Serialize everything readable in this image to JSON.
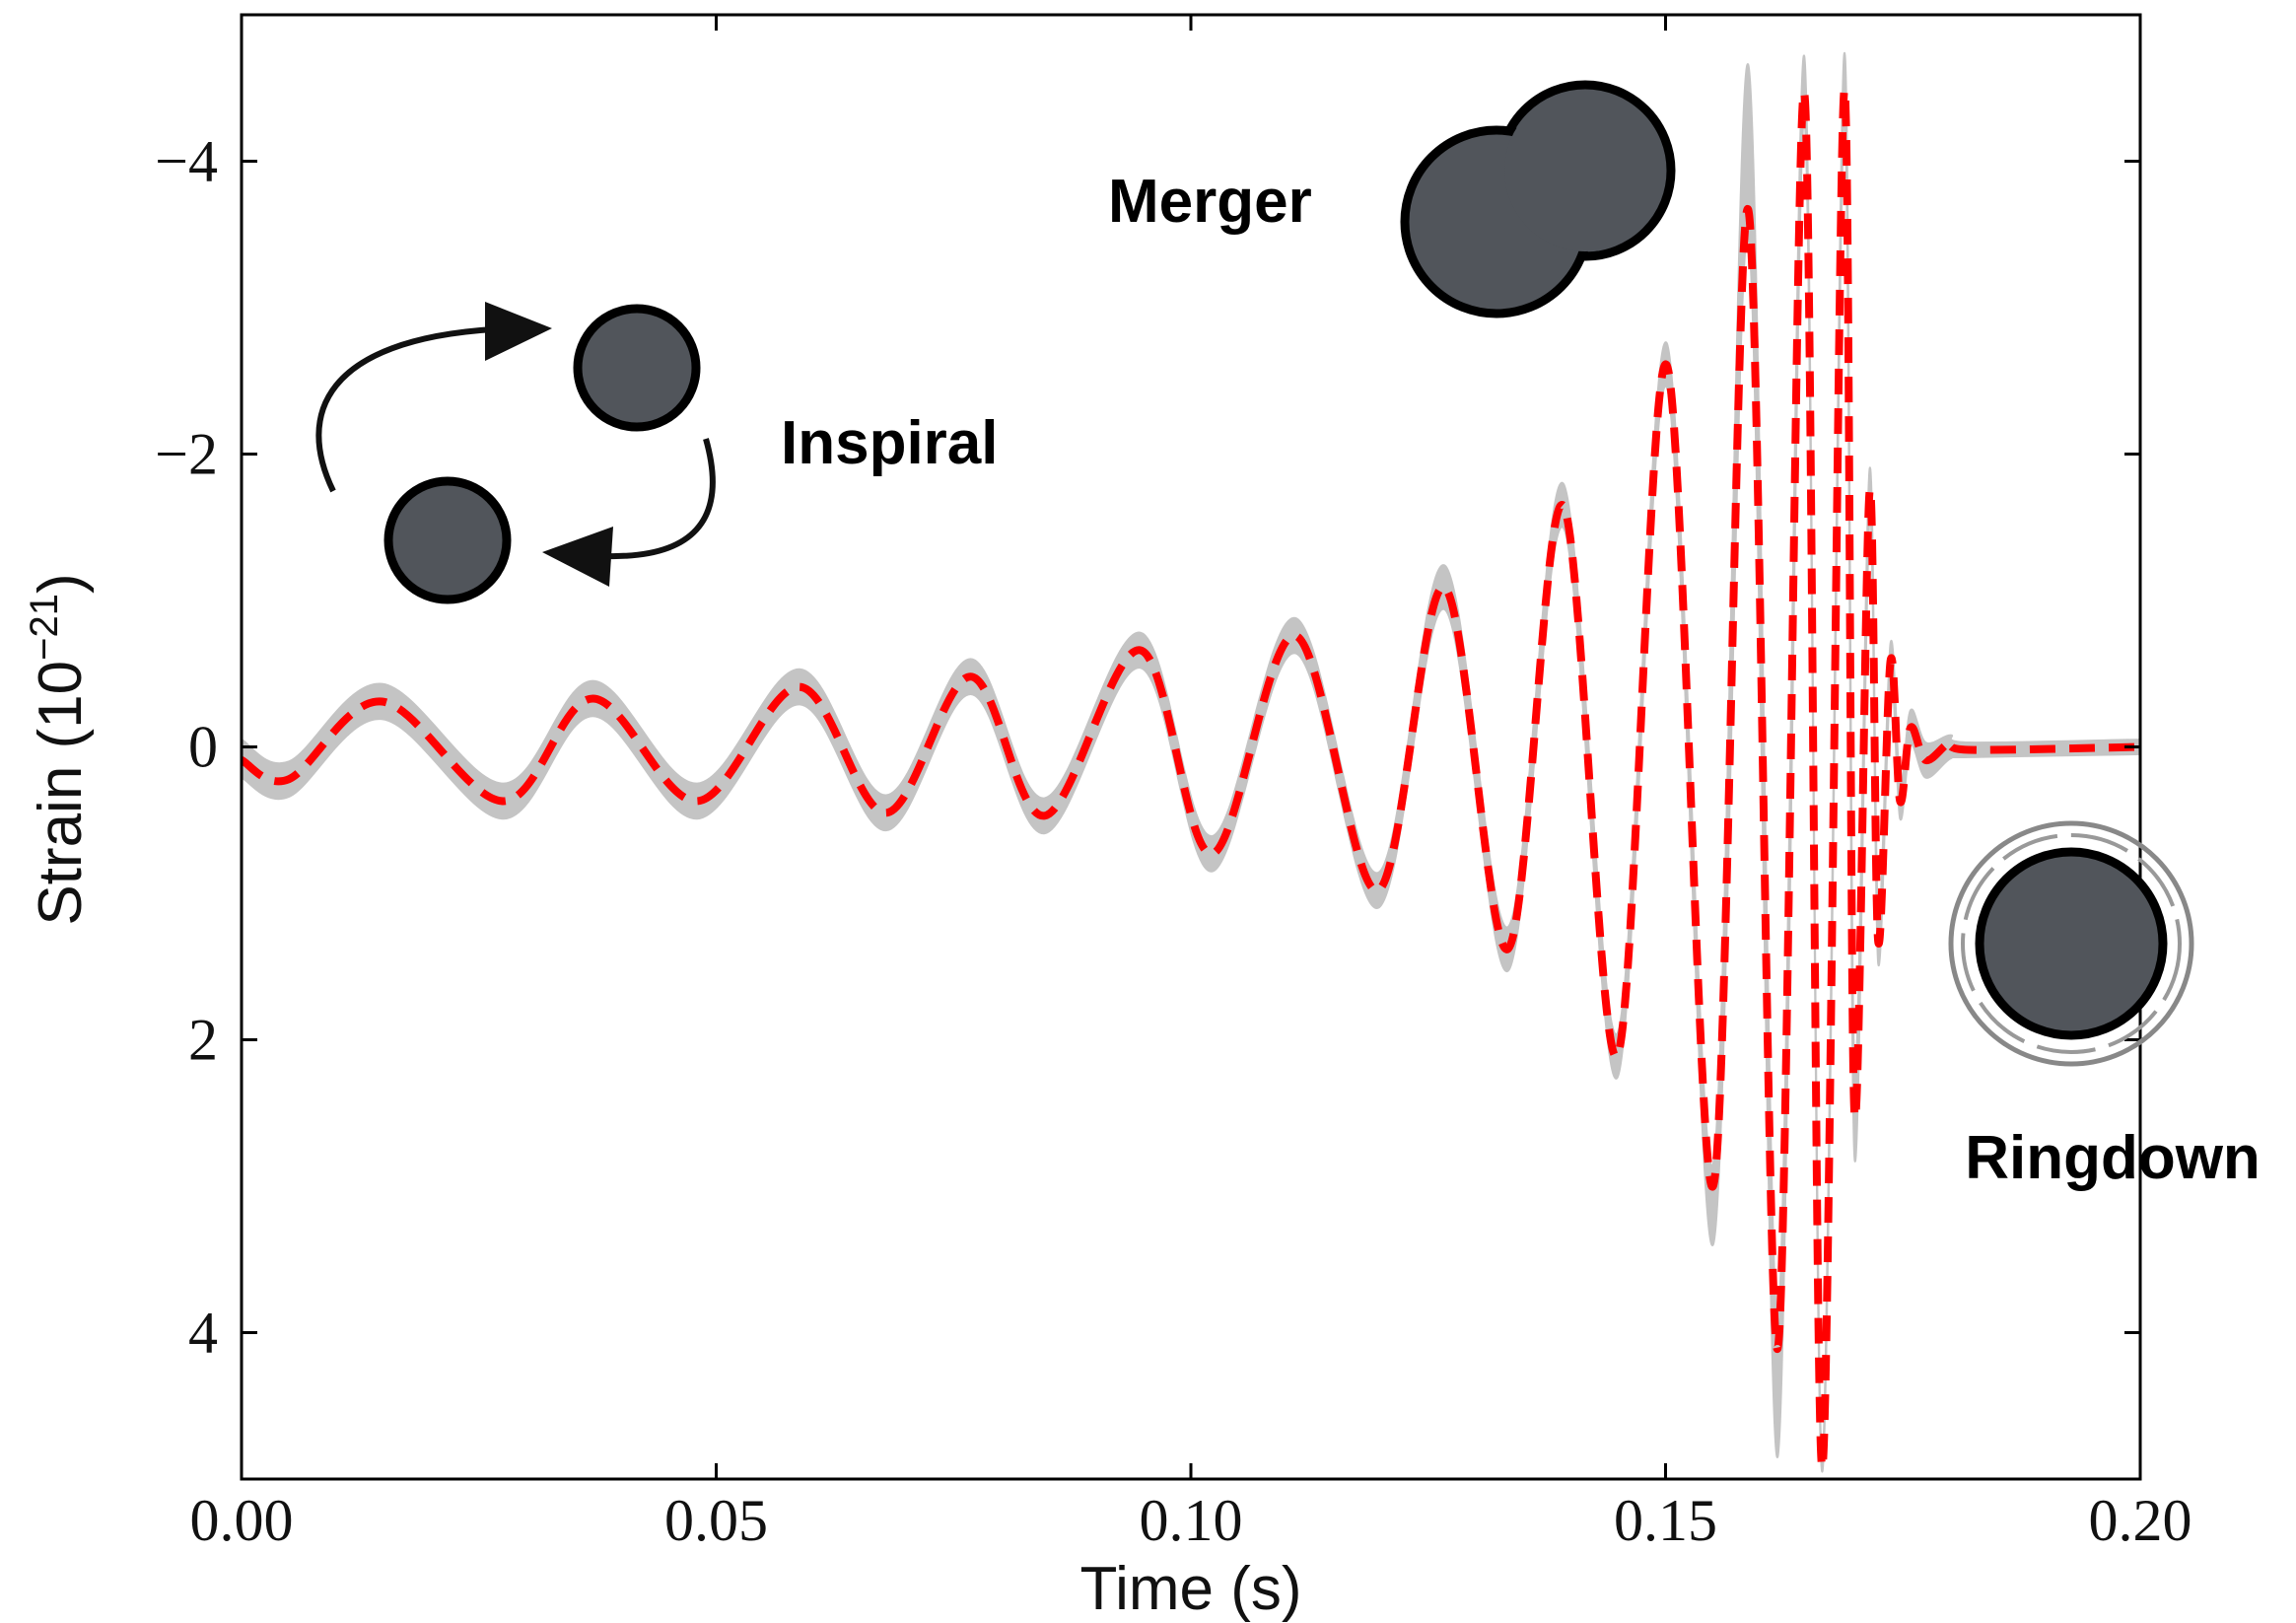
{
  "chart_data": {
    "type": "line",
    "xlabel": "Time (s)",
    "ylabel": [
      "Strain (10",
      "−21",
      ")"
    ],
    "annotations": [
      {
        "text": "Inspiral"
      },
      {
        "text": "Merger"
      },
      {
        "text": "Ringdown"
      }
    ],
    "x": [
      0.0,
      0.005,
      0.0148,
      0.0276,
      0.037,
      0.048,
      0.0588,
      0.0679,
      0.0768,
      0.0846,
      0.0947,
      0.1022,
      0.111,
      0.1197,
      0.1267,
      0.1334,
      0.1392,
      0.1449,
      0.1501,
      0.155,
      0.1587,
      0.1618,
      0.1646,
      0.1665,
      0.1688,
      0.1699,
      0.1715,
      0.1724,
      0.1737,
      0.1747,
      0.1758,
      0.1774,
      0.18,
      0.182,
      0.2
    ],
    "series": [
      {
        "color": "#ff0000",
        "style": "dashed",
        "values": [
          0.09,
          0.22,
          -0.31,
          0.37,
          -0.33,
          0.37,
          -0.41,
          0.45,
          -0.48,
          0.47,
          -0.66,
          0.73,
          -0.76,
          0.98,
          -1.09,
          1.38,
          -1.65,
          2.11,
          -2.61,
          3.0,
          -3.67,
          4.11,
          -4.47,
          4.92,
          -4.47,
          2.5,
          -1.75,
          1.33,
          -0.59,
          0.37,
          -0.13,
          0.09,
          -0.03,
          0.02,
          0
        ],
        "band": {
          "color": "#c4c4c4",
          "low": [
            -0.05,
            0.1,
            -0.43,
            0.25,
            -0.45,
            0.25,
            -0.53,
            0.33,
            -0.6,
            0.35,
            -0.78,
            0.61,
            -0.88,
            0.86,
            -1.24,
            1.23,
            -1.8,
            1.96,
            -2.76,
            2.85,
            -4.66,
            3.9,
            -4.72,
            4.75,
            -4.72,
            2.2,
            -1.9,
            1.18,
            -0.71,
            0.25,
            -0.25,
            -0.03,
            -0.08,
            -0.03,
            -0.05
          ],
          "high": [
            0.21,
            0.34,
            -0.19,
            0.49,
            -0.21,
            0.49,
            -0.29,
            0.57,
            -0.36,
            0.59,
            -0.54,
            0.85,
            -0.64,
            1.1,
            -0.94,
            1.53,
            -1.5,
            2.26,
            -2.46,
            3.4,
            -3.5,
            4.85,
            -4.3,
            4.95,
            -4.3,
            2.8,
            -1.6,
            1.48,
            -0.47,
            0.49,
            -0.01,
            0.21,
            0.08,
            0.07,
            0.05
          ]
        }
      }
    ],
    "xlim": [
      0,
      0.2
    ],
    "ylim": [
      -5,
      5
    ],
    "y_inverted": true,
    "xticks": [
      {
        "value": 0,
        "label": "0.00"
      },
      0.05,
      {
        "value": 0.1,
        "label": "0.10"
      },
      0.15,
      {
        "value": 0.2,
        "label": "0.20"
      }
    ],
    "yticks": [
      {
        "value": -4,
        "label": "−4"
      },
      {
        "value": -2,
        "label": "−2"
      },
      0,
      2,
      4
    ],
    "grid": false
  }
}
